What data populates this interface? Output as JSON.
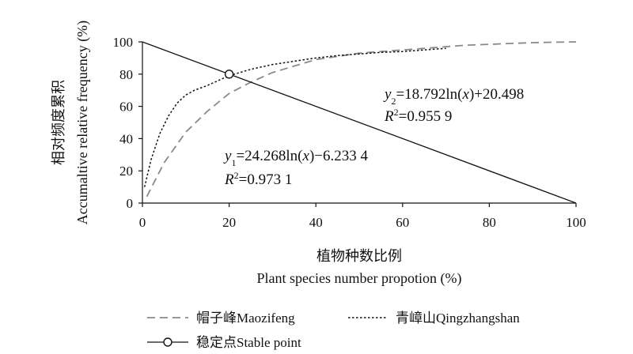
{
  "chart_data": {
    "type": "line",
    "xlabel_cn": "植物种数比例",
    "xlabel": "Plant species number propotion (%)",
    "ylabel_cn": "相对频度累积",
    "ylabel": "Accumaltive relative frequency (%)",
    "xlim": [
      0,
      100
    ],
    "ylim": [
      0,
      100
    ],
    "xticks": [
      "0",
      "20",
      "40",
      "60",
      "80",
      "100"
    ],
    "yticks": [
      "0",
      "20",
      "40",
      "60",
      "80",
      "100"
    ],
    "series": [
      {
        "name": "帽子峰Maozifeng",
        "style": "long-dash",
        "color": "#8a8a8a",
        "x": [
          1,
          5,
          10,
          15,
          20,
          25,
          30,
          35,
          40,
          45,
          50,
          55,
          60,
          65,
          70,
          75,
          80,
          85,
          90,
          95,
          100
        ],
        "y": [
          4,
          25,
          44,
          57,
          68,
          75,
          81,
          85,
          89,
          91,
          93,
          94,
          95,
          96,
          97,
          98,
          98.5,
          99,
          99.5,
          99.8,
          100
        ]
      },
      {
        "name": "青嶂山Qingzhangshan",
        "style": "dotted",
        "color": "#111111",
        "x": [
          0.5,
          2,
          4,
          6,
          8,
          10,
          12,
          15,
          20,
          25,
          30,
          35,
          40,
          45,
          50,
          55,
          60,
          65,
          70
        ],
        "y": [
          10,
          27,
          43,
          54,
          62,
          67,
          70,
          73,
          79,
          83,
          86,
          88,
          90,
          91.5,
          92.5,
          93.5,
          94,
          95,
          96
        ]
      },
      {
        "name": "diagonal",
        "style": "solid",
        "color": "#111111",
        "x": [
          0,
          100
        ],
        "y": [
          100,
          0
        ]
      }
    ],
    "stable_point": {
      "name": "稳定点Stable point",
      "x": 20,
      "y": 80
    },
    "annotations": {
      "eq1": {
        "y": "y",
        "sub": "1",
        "rest": "=24.268ln(",
        "x": "x",
        "tail": ")−6.233 4"
      },
      "r1": {
        "r": "R",
        "sup": "2",
        "val": "=0.973 1"
      },
      "eq2": {
        "y": "y",
        "sub": "2",
        "rest": "=18.792ln(",
        "x": "x",
        "tail": ")+20.498"
      },
      "r2": {
        "r": "R",
        "sup": "2",
        "val": "=0.955 9"
      }
    },
    "legend": [
      "帽子峰Maozifeng",
      "青嶂山Qingzhangshan",
      "稳定点Stable point"
    ]
  }
}
